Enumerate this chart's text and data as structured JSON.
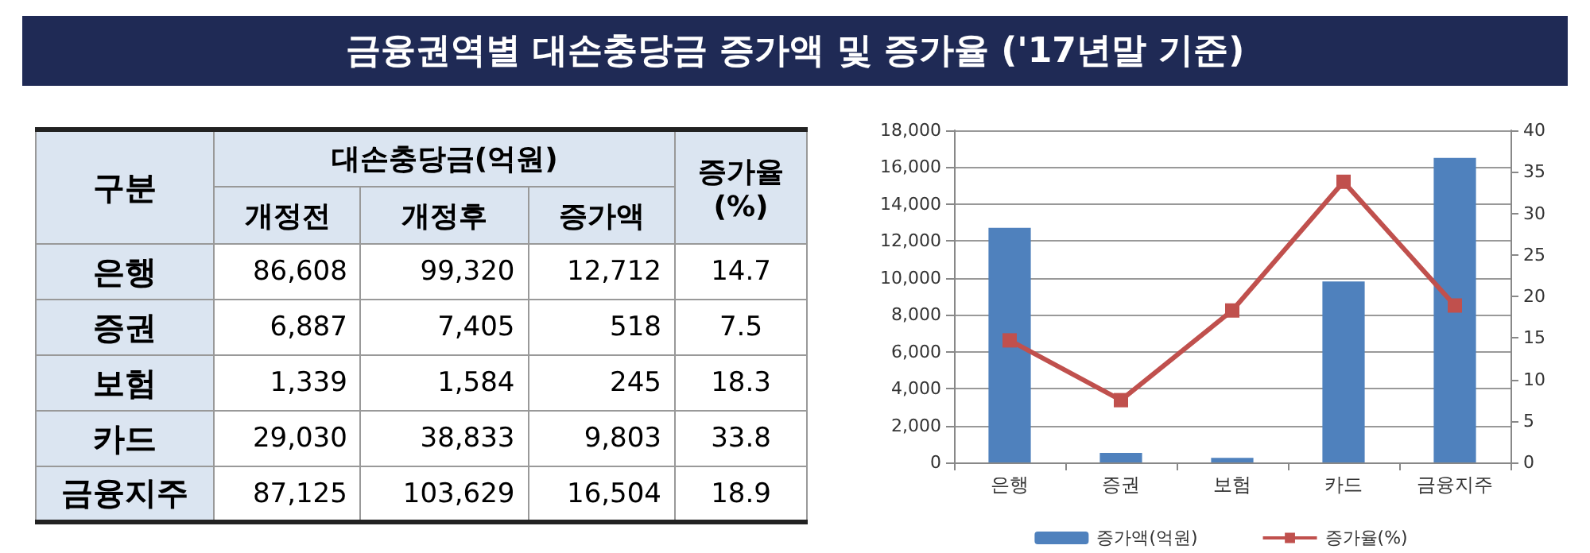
{
  "chart_data": [
    {
      "type": "other",
      "title": "금융권역별 대손충당금 증가액 및 증가율 ('17년말 기준)",
      "annotations": [
        "구분",
        "대손충당금(억원)"
      ],
      "categories": [
        "은행",
        "증권",
        "보험",
        "카드",
        "금융지주"
      ],
      "series": [
        {
          "name": "개정전",
          "values": [
            86608,
            6887,
            1339,
            29030,
            87125
          ],
          "value_labels": [
            "86,608",
            "6,887",
            "1,339",
            "29,030",
            "87,125"
          ]
        },
        {
          "name": "개정후",
          "values": [
            99320,
            7405,
            1584,
            38833,
            103629
          ],
          "value_labels": [
            "99,320",
            "7,405",
            "1,584",
            "38,833",
            "103,629"
          ]
        },
        {
          "name": "증가액",
          "values": [
            12712,
            518,
            245,
            9803,
            16504
          ],
          "value_labels": [
            "12,712",
            "518",
            "245",
            "9,803",
            "16,504"
          ]
        },
        {
          "name": "증가율 (%)",
          "values": [
            14.7,
            7.5,
            18.3,
            33.8,
            18.9
          ],
          "value_labels": [
            "14.7",
            "7.5",
            "18.3",
            "33.8",
            "18.9"
          ]
        }
      ]
    },
    {
      "type": "bar",
      "categories": [
        "은행",
        "증권",
        "보험",
        "카드",
        "금융지주"
      ],
      "series": [
        {
          "name": "증가액(억원)",
          "type": "bar",
          "color": "#4f81bd",
          "values": [
            12712,
            518,
            245,
            9803,
            16504
          ]
        },
        {
          "name": "증가율(%)",
          "type": "line",
          "axis": "y2",
          "color": "#c0504d",
          "marker": "square",
          "values": [
            14.7,
            7.5,
            18.3,
            33.8,
            18.9
          ]
        }
      ],
      "ylim": [
        0,
        18000
      ],
      "yticks": [
        0,
        {
          "value": 2000,
          "label": "2,000"
        },
        {
          "value": 4000,
          "label": "4,000"
        },
        {
          "value": 6000,
          "label": "6,000"
        },
        {
          "value": 8000,
          "label": "8,000"
        },
        {
          "value": 10000,
          "label": "10,000"
        },
        {
          "value": 12000,
          "label": "12,000"
        },
        {
          "value": 14000,
          "label": "14,000"
        },
        {
          "value": 16000,
          "label": "16,000"
        },
        {
          "value": 18000,
          "label": "18,000"
        }
      ],
      "y2lim": [
        0,
        40
      ],
      "y2ticks": [
        0,
        5,
        10,
        15,
        20,
        25,
        30,
        35,
        40
      ],
      "grid": "y",
      "legend": "bottom"
    }
  ]
}
